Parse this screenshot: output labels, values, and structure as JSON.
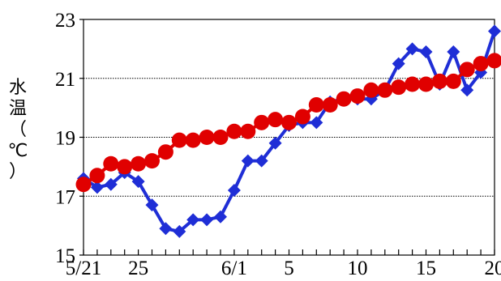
{
  "chart_data": {
    "type": "line",
    "title": "",
    "xlabel": "",
    "ylabel": "水温（℃）",
    "ylabel_chars": [
      "水",
      "温",
      "（",
      "℃",
      "）"
    ],
    "ylim": [
      15,
      23
    ],
    "yticks": [
      15,
      17,
      19,
      21,
      23
    ],
    "ytick_labels": [
      "15",
      "17",
      "19",
      "21",
      "23"
    ],
    "grid": "horizontal dotted",
    "xlim": [
      0,
      30
    ],
    "xticks": [
      0,
      4,
      11,
      15,
      20,
      25,
      30
    ],
    "xtick_labels": [
      "5/21",
      "25",
      "6/1",
      "5",
      "10",
      "15",
      "20"
    ],
    "x": [
      0,
      1,
      2,
      3,
      4,
      5,
      6,
      7,
      8,
      9,
      10,
      11,
      12,
      13,
      14,
      15,
      16,
      17,
      18,
      19,
      20,
      21,
      22,
      23,
      24,
      25,
      26,
      27,
      28,
      29,
      30
    ],
    "series": [
      {
        "name": "",
        "color": "#1f2ed6",
        "marker": "diamond",
        "values": [
          17.6,
          17.3,
          17.4,
          17.8,
          17.5,
          16.7,
          15.9,
          15.8,
          16.2,
          16.2,
          16.3,
          17.2,
          18.2,
          18.2,
          18.8,
          19.4,
          19.5,
          19.5,
          20.2,
          20.3,
          20.3,
          20.3,
          20.6,
          21.5,
          22.0,
          21.9,
          20.8,
          21.9,
          20.6,
          21.2,
          22.6
        ]
      },
      {
        "name": "",
        "color": "#e00000",
        "marker": "circle",
        "values": [
          17.4,
          17.7,
          18.1,
          18.0,
          18.1,
          18.2,
          18.5,
          18.9,
          18.9,
          19.0,
          19.0,
          19.2,
          19.2,
          19.5,
          19.6,
          19.5,
          19.7,
          20.1,
          20.1,
          20.3,
          20.4,
          20.6,
          20.6,
          20.7,
          20.8,
          20.8,
          20.9,
          20.9,
          21.3,
          21.5,
          21.6
        ]
      }
    ]
  }
}
